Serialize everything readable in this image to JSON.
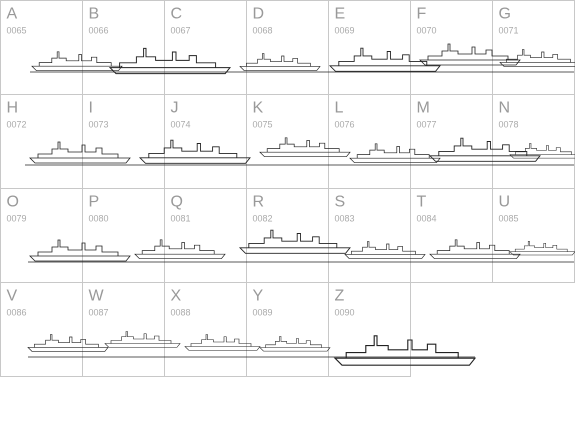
{
  "cells": [
    {
      "letter": "A",
      "code": "0065"
    },
    {
      "letter": "B",
      "code": "0066"
    },
    {
      "letter": "C",
      "code": "0067"
    },
    {
      "letter": "D",
      "code": "0068"
    },
    {
      "letter": "E",
      "code": "0069"
    },
    {
      "letter": "F",
      "code": "0070"
    },
    {
      "letter": "G",
      "code": "0071"
    },
    {
      "letter": "H",
      "code": "0072"
    },
    {
      "letter": "I",
      "code": "0073"
    },
    {
      "letter": "J",
      "code": "0074"
    },
    {
      "letter": "K",
      "code": "0075"
    },
    {
      "letter": "L",
      "code": "0076"
    },
    {
      "letter": "M",
      "code": "0077"
    },
    {
      "letter": "N",
      "code": "0078"
    },
    {
      "letter": "O",
      "code": "0079"
    },
    {
      "letter": "P",
      "code": "0080"
    },
    {
      "letter": "Q",
      "code": "0081"
    },
    {
      "letter": "R",
      "code": "0082"
    },
    {
      "letter": "S",
      "code": "0083"
    },
    {
      "letter": "T",
      "code": "0084"
    },
    {
      "letter": "U",
      "code": "0085"
    },
    {
      "letter": "V",
      "code": "0086"
    },
    {
      "letter": "W",
      "code": "0087"
    },
    {
      "letter": "X",
      "code": "0088"
    },
    {
      "letter": "Y",
      "code": "0089"
    },
    {
      "letter": "Z",
      "code": "0090"
    }
  ]
}
